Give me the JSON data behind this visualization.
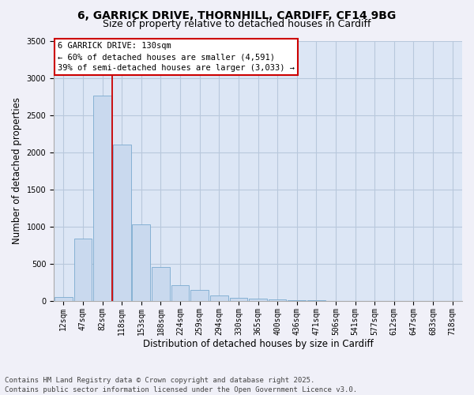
{
  "title_line1": "6, GARRICK DRIVE, THORNHILL, CARDIFF, CF14 9BG",
  "title_line2": "Size of property relative to detached houses in Cardiff",
  "xlabel": "Distribution of detached houses by size in Cardiff",
  "ylabel": "Number of detached properties",
  "categories": [
    "12sqm",
    "47sqm",
    "82sqm",
    "118sqm",
    "153sqm",
    "188sqm",
    "224sqm",
    "259sqm",
    "294sqm",
    "330sqm",
    "365sqm",
    "400sqm",
    "436sqm",
    "471sqm",
    "506sqm",
    "541sqm",
    "577sqm",
    "612sqm",
    "647sqm",
    "683sqm",
    "718sqm"
  ],
  "values": [
    55,
    840,
    2760,
    2100,
    1030,
    455,
    215,
    145,
    75,
    45,
    35,
    25,
    15,
    8,
    4,
    2,
    1,
    0,
    0,
    0,
    0
  ],
  "bar_color": "#c9d9ee",
  "bar_edge_color": "#7aaacf",
  "line_color": "#cc0000",
  "line_x_index": 3,
  "annotation_text": "6 GARRICK DRIVE: 130sqm\n← 60% of detached houses are smaller (4,591)\n39% of semi-detached houses are larger (3,033) →",
  "ylim": [
    0,
    3500
  ],
  "yticks": [
    0,
    500,
    1000,
    1500,
    2000,
    2500,
    3000,
    3500
  ],
  "footnote_line1": "Contains HM Land Registry data © Crown copyright and database right 2025.",
  "footnote_line2": "Contains public sector information licensed under the Open Government Licence v3.0.",
  "bg_color": "#dce6f5",
  "grid_color": "#b8c8dc",
  "fig_bg": "#f0f0f8",
  "title_fontsize": 10,
  "subtitle_fontsize": 9,
  "tick_fontsize": 7,
  "label_fontsize": 8.5,
  "footnote_fontsize": 6.5,
  "annot_fontsize": 7.5
}
